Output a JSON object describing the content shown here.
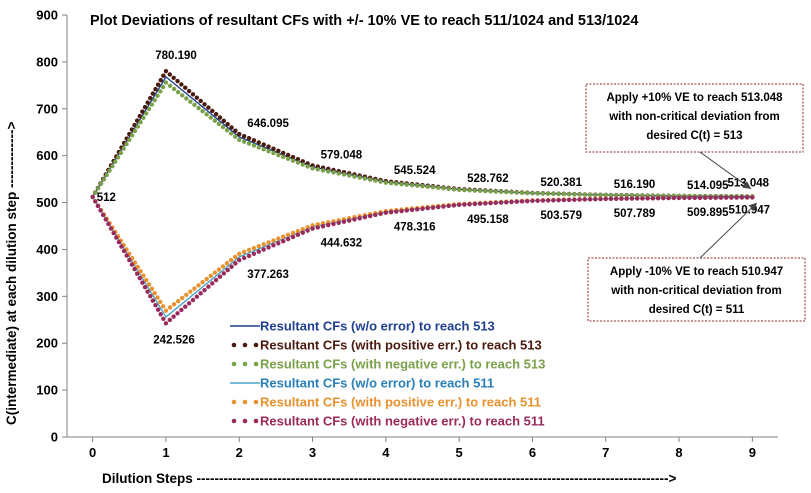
{
  "chart_data": {
    "type": "line",
    "title": "Plot Deviations of resultant CFs with +/- 10% VE to reach 511/1024 and 513/1024",
    "xlabel": "Dilution Steps --------------------------------------------------------------------------------------------------------->",
    "ylabel": "C(intermediate) at each dilution step ------------->",
    "xlim": [
      -0.35,
      9.35
    ],
    "ylim": [
      0,
      900
    ],
    "x_ticks": [
      0,
      1,
      2,
      3,
      4,
      5,
      6,
      7,
      8,
      9
    ],
    "y_ticks": [
      0,
      100,
      200,
      300,
      400,
      500,
      600,
      700,
      800,
      900
    ],
    "grid": false,
    "legend_position": "bottom-center",
    "series": [
      {
        "name": "Resultant CFs (w/o error) to reach 513",
        "color": "#1f3f8f",
        "style": "line",
        "x": [
          0,
          1,
          2,
          3,
          4,
          5,
          6,
          7,
          8,
          9
        ],
        "y": [
          512,
          768,
          640,
          576,
          544,
          528,
          520,
          516,
          514,
          513
        ]
      },
      {
        "name": "Resultant CFs (with positive err.) to reach 513",
        "color": "#4a1a0e",
        "style": "dots",
        "x": [
          0,
          1,
          2,
          3,
          4,
          5,
          6,
          7,
          8,
          9
        ],
        "y": [
          512,
          780.19,
          646.095,
          579.048,
          545.524,
          528.762,
          520.381,
          516.19,
          514.095,
          513.048
        ]
      },
      {
        "name": "Resultant CFs (with negative err.) to reach 513",
        "color": "#7aa14a",
        "style": "dots",
        "x": [
          0,
          1,
          2,
          3,
          4,
          5,
          6,
          7,
          8,
          9
        ],
        "y": [
          512,
          755.81,
          633.905,
          572.952,
          542.476,
          527.238,
          519.619,
          515.81,
          513.905,
          512.952
        ]
      },
      {
        "name": "Resultant CFs (w/o error) to reach 511",
        "color": "#4aa3c8",
        "style": "line",
        "x": [
          0,
          1,
          2,
          3,
          4,
          5,
          6,
          7,
          8,
          9
        ],
        "y": [
          512,
          256,
          384,
          448,
          480,
          496,
          504,
          508,
          510,
          511
        ]
      },
      {
        "name": "Resultant CFs (with positive err.) to reach 511",
        "color": "#e8912f",
        "style": "dots",
        "x": [
          0,
          1,
          2,
          3,
          4,
          5,
          6,
          7,
          8,
          9
        ],
        "y": [
          512,
          269.474,
          390.737,
          451.368,
          481.684,
          496.842,
          504.421,
          508.211,
          510.105,
          511.053
        ]
      },
      {
        "name": "Resultant CFs (with negative err.) to reach 511",
        "color": "#9a2a5c",
        "style": "dots",
        "x": [
          0,
          1,
          2,
          3,
          4,
          5,
          6,
          7,
          8,
          9
        ],
        "y": [
          512,
          242.526,
          377.263,
          444.632,
          478.316,
          495.158,
          503.579,
          507.789,
          509.895,
          510.947
        ]
      }
    ],
    "data_labels": [
      {
        "x": 0,
        "y": 512,
        "text": "512"
      },
      {
        "x": 1,
        "y": 780.19,
        "text": "780.190"
      },
      {
        "x": 2,
        "y": 646.095,
        "text": "646.095"
      },
      {
        "x": 3,
        "y": 579.048,
        "text": "579.048"
      },
      {
        "x": 4,
        "y": 545.524,
        "text": "545.524"
      },
      {
        "x": 5,
        "y": 528.762,
        "text": "528.762"
      },
      {
        "x": 6,
        "y": 520.381,
        "text": "520.381"
      },
      {
        "x": 7,
        "y": 516.19,
        "text": "516.190"
      },
      {
        "x": 8,
        "y": 514.095,
        "text": "514.095"
      },
      {
        "x": 9,
        "y": 513.048,
        "text": "513.048"
      },
      {
        "x": 1,
        "y": 242.526,
        "text": "242.526"
      },
      {
        "x": 2,
        "y": 377.263,
        "text": "377.263"
      },
      {
        "x": 3,
        "y": 444.632,
        "text": "444.632"
      },
      {
        "x": 4,
        "y": 478.316,
        "text": "478.316"
      },
      {
        "x": 5,
        "y": 495.158,
        "text": "495.158"
      },
      {
        "x": 6,
        "y": 503.579,
        "text": "503.579"
      },
      {
        "x": 7,
        "y": 507.789,
        "text": "507.789"
      },
      {
        "x": 8,
        "y": 509.895,
        "text": "509.895"
      },
      {
        "x": 9,
        "y": 510.947,
        "text": "510.947"
      }
    ],
    "annotations": [
      {
        "lines": [
          "Apply +10% VE to reach  513.048",
          "with non-critical deviation from",
          "desired C(t) = 513"
        ],
        "target_x": 9,
        "target_y": 513.048
      },
      {
        "lines": [
          "Apply -10% VE to reach 510.947",
          "with non-critical deviation from",
          "desired C(t) = 511"
        ],
        "target_x": 9,
        "target_y": 510.947
      }
    ]
  }
}
